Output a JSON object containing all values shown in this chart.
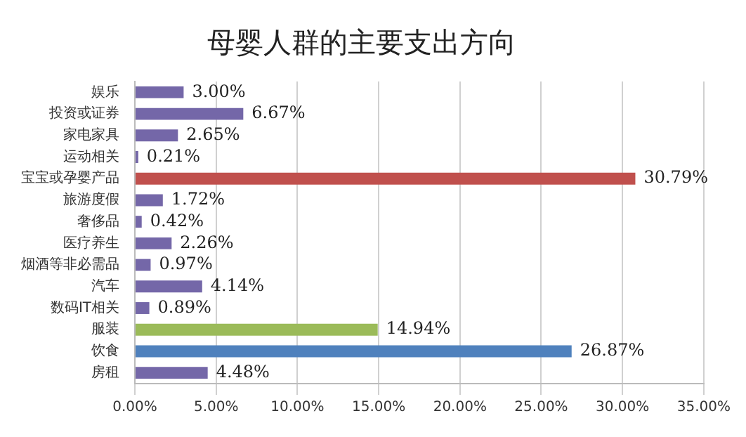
{
  "chart_data": {
    "type": "bar",
    "orientation": "horizontal",
    "title": "母婴人群的主要支出方向",
    "categories": [
      "娱乐",
      "投资或证券",
      "家电家具",
      "运动相关",
      "宝宝或孕婴产品",
      "旅游度假",
      "奢侈品",
      "医疗养生",
      "烟酒等非必需品",
      "汽车",
      "数码IT相关",
      "服装",
      "饮食",
      "房租"
    ],
    "values": [
      3.0,
      6.67,
      2.65,
      0.21,
      30.79,
      1.72,
      0.42,
      2.26,
      0.97,
      4.14,
      0.89,
      14.94,
      26.87,
      4.48
    ],
    "colors": [
      "#7467a8",
      "#7467a8",
      "#7467a8",
      "#7467a8",
      "#c0504d",
      "#7467a8",
      "#7467a8",
      "#7467a8",
      "#7467a8",
      "#7467a8",
      "#7467a8",
      "#9bbb59",
      "#4f81bd",
      "#7467a8"
    ],
    "value_labels": [
      "3.00%",
      "6.67%",
      "2.65%",
      "0.21%",
      "30.79%",
      "1.72%",
      "0.42%",
      "2.26%",
      "0.97%",
      "4.14%",
      "0.89%",
      "14.94%",
      "26.87%",
      "4.48%"
    ],
    "xlim": [
      0,
      35
    ],
    "xticks": [
      {
        "value": 0,
        "label": "0.00%"
      },
      {
        "value": 5,
        "label": "5.00%"
      },
      {
        "value": 10,
        "label": "10.00%"
      },
      {
        "value": 15,
        "label": "15.00%"
      },
      {
        "value": 20,
        "label": "20.00%"
      },
      {
        "value": 25,
        "label": "25.00%"
      },
      {
        "value": 30,
        "label": "30.00%"
      },
      {
        "value": 35,
        "label": "35.00%"
      }
    ],
    "grid": "x",
    "legend": false
  }
}
